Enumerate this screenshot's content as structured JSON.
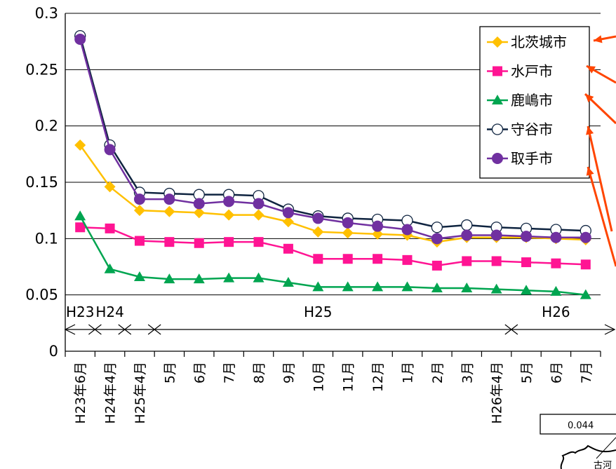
{
  "chart_data": {
    "type": "line",
    "categories": [
      "H23年6月",
      "H24年4月",
      "H25年4月",
      "5月",
      "6月",
      "7月",
      "8月",
      "9月",
      "10月",
      "11月",
      "12月",
      "1月",
      "2月",
      "3月",
      "H26年4月",
      "5月",
      "6月",
      "7月"
    ],
    "ylim": [
      0,
      0.3
    ],
    "yticks": [
      "0",
      "0.05",
      "0.1",
      "0.15",
      "0.2",
      "0.25",
      "0.3"
    ],
    "grid": true,
    "legend_position": "top-right",
    "series": [
      {
        "name": "北茨城市",
        "color": "#FFC000",
        "marker": "diamond",
        "values": [
          0.183,
          0.146,
          0.125,
          0.124,
          0.123,
          0.121,
          0.121,
          0.115,
          0.106,
          0.105,
          0.104,
          0.103,
          0.097,
          0.101,
          0.101,
          0.101,
          0.1,
          0.099
        ]
      },
      {
        "name": "水戸市",
        "color": "#FF1493",
        "marker": "square",
        "values": [
          0.11,
          0.109,
          0.098,
          0.097,
          0.096,
          0.097,
          0.097,
          0.091,
          0.082,
          0.082,
          0.082,
          0.081,
          0.076,
          0.08,
          0.08,
          0.079,
          0.078,
          0.077
        ]
      },
      {
        "name": "鹿嶋市",
        "color": "#00A550",
        "marker": "triangle",
        "values": [
          0.12,
          0.073,
          0.066,
          0.064,
          0.064,
          0.065,
          0.065,
          0.061,
          0.057,
          0.057,
          0.057,
          0.057,
          0.056,
          0.056,
          0.055,
          0.054,
          0.053,
          0.05
        ]
      },
      {
        "name": "守谷市",
        "color": "#0F2440",
        "marker": "circle-open",
        "values": [
          0.28,
          0.183,
          0.141,
          0.14,
          0.139,
          0.139,
          0.138,
          0.126,
          0.12,
          0.118,
          0.117,
          0.116,
          0.11,
          0.112,
          0.11,
          0.109,
          0.108,
          0.107
        ]
      },
      {
        "name": "取手市",
        "color": "#7030A0",
        "marker": "circle",
        "values": [
          0.277,
          0.179,
          0.135,
          0.135,
          0.131,
          0.133,
          0.131,
          0.123,
          0.118,
          0.114,
          0.111,
          0.108,
          0.1,
          0.103,
          0.103,
          0.102,
          0.101,
          0.101
        ]
      }
    ],
    "era_labels": [
      {
        "text": "H23",
        "index": 0
      },
      {
        "text": "H24",
        "index": 1
      },
      {
        "text": "H25",
        "index": 8
      },
      {
        "text": "H26",
        "index": 16
      }
    ],
    "era_boundaries": [
      0,
      1,
      2,
      14
    ]
  },
  "inset": {
    "value": "0.044",
    "place": "古河"
  }
}
